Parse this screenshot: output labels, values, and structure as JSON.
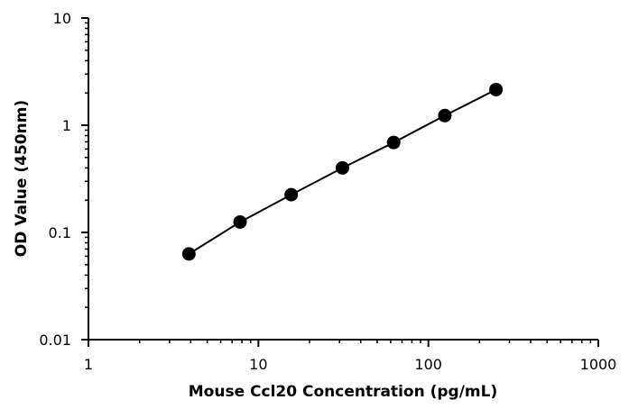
{
  "chart_data": {
    "type": "scatter",
    "title": "",
    "xlabel": "Mouse Ccl20 Concentration (pg/mL)",
    "ylabel": "OD Value (450nm)",
    "x_scale": "log",
    "y_scale": "log",
    "xlim": [
      1,
      1000
    ],
    "ylim": [
      0.01,
      10
    ],
    "x_ticks": [
      1,
      10,
      100,
      1000
    ],
    "x_tick_labels": [
      "1",
      "10",
      "100",
      "1000"
    ],
    "y_ticks": [
      0.01,
      0.1,
      1,
      10
    ],
    "y_tick_labels": [
      "0.01",
      "0.1",
      "1",
      "10"
    ],
    "grid": false,
    "legend": "none",
    "series": [
      {
        "x": [
          3.9,
          7.8,
          15.6,
          31.25,
          62.5,
          125,
          250
        ],
        "y": [
          0.063,
          0.125,
          0.225,
          0.4,
          0.69,
          1.23,
          2.15
        ],
        "color": "#000000",
        "line": true,
        "marker": "circle"
      }
    ]
  }
}
